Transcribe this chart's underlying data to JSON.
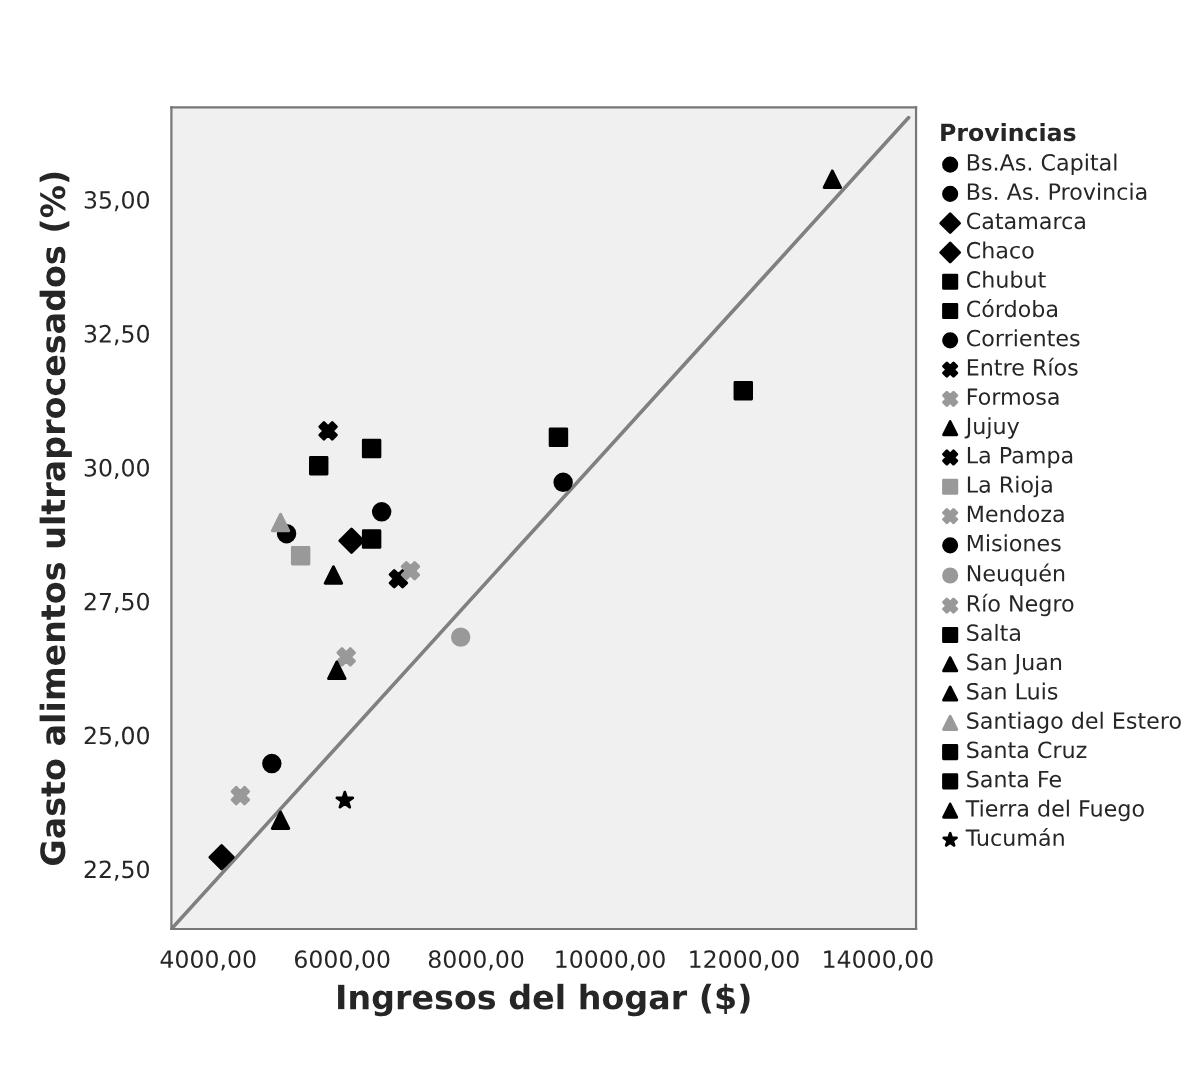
{
  "chart_data": {
    "type": "scatter",
    "xlabel": "Ingresos del hogar ($)",
    "ylabel": "Gasto alimentos ultraprocesados (%)",
    "legend_title": "Provincias",
    "legend": "right",
    "grid": false,
    "xlim": [
      3450,
      14570
    ],
    "ylim": [
      21.38,
      36.72
    ],
    "xticks": [
      {
        "value": 4000,
        "label": "4000,00"
      },
      {
        "value": 6000,
        "label": "6000,00"
      },
      {
        "value": 8000,
        "label": "8000,00"
      },
      {
        "value": 10000,
        "label": "10000,00"
      },
      {
        "value": 12000,
        "label": "12000,00"
      },
      {
        "value": 14000,
        "label": "14000,00"
      }
    ],
    "yticks": [
      {
        "value": 22.5,
        "label": "22,50"
      },
      {
        "value": 25,
        "label": "25,00"
      },
      {
        "value": 27.5,
        "label": "27,50"
      },
      {
        "value": 30,
        "label": "30,00"
      },
      {
        "value": 32.5,
        "label": "32,50"
      },
      {
        "value": 35,
        "label": "35,00"
      }
    ],
    "series": [
      {
        "name": "Bs.As. Capital",
        "color": "#000000",
        "marker": "circle",
        "x": [
          9300
        ],
        "values": [
          29.72
        ]
      },
      {
        "name": "Bs. As. Provincia",
        "color": "#000000",
        "marker": "circle",
        "x": [
          6590
        ],
        "values": [
          29.17
        ]
      },
      {
        "name": "Catamarca",
        "color": "#000000",
        "marker": "diamond",
        "x": [
          6140
        ],
        "values": [
          28.63
        ]
      },
      {
        "name": "Chaco",
        "color": "#000000",
        "marker": "diamond",
        "x": [
          4200
        ],
        "values": [
          22.72
        ]
      },
      {
        "name": "Chubut",
        "color": "#000000",
        "marker": "square",
        "x": [
          9230
        ],
        "values": [
          30.56
        ]
      },
      {
        "name": "Córdoba",
        "color": "#000000",
        "marker": "square",
        "x": [
          6440
        ],
        "values": [
          28.66
        ]
      },
      {
        "name": "Corrientes",
        "color": "#000000",
        "marker": "circle",
        "x": [
          5170
        ],
        "values": [
          28.76
        ]
      },
      {
        "name": "Entre Ríos",
        "color": "#000000",
        "marker": "cross",
        "x": [
          5790
        ],
        "values": [
          30.68
        ]
      },
      {
        "name": "Formosa",
        "color": "#999999",
        "marker": "cross",
        "x": [
          4480
        ],
        "values": [
          23.87
        ]
      },
      {
        "name": "Jujuy",
        "color": "#000000",
        "marker": "triangle",
        "x": [
          5870
        ],
        "values": [
          27.99
        ]
      },
      {
        "name": "La Pampa",
        "color": "#000000",
        "marker": "cross",
        "x": [
          6840
        ],
        "values": [
          27.92
        ]
      },
      {
        "name": "La Rioja",
        "color": "#999999",
        "marker": "square",
        "x": [
          5380
        ],
        "values": [
          28.35
        ]
      },
      {
        "name": "Mendoza",
        "color": "#999999",
        "marker": "cross",
        "x": [
          6060
        ],
        "values": [
          26.46
        ]
      },
      {
        "name": "Misiones",
        "color": "#000000",
        "marker": "circle",
        "x": [
          4950
        ],
        "values": [
          24.47
        ]
      },
      {
        "name": "Neuquén",
        "color": "#999999",
        "marker": "circle",
        "x": [
          7770
        ],
        "values": [
          26.83
        ]
      },
      {
        "name": "Río Negro",
        "color": "#999999",
        "marker": "cross",
        "x": [
          7020
        ],
        "values": [
          28.07
        ]
      },
      {
        "name": "Salta",
        "color": "#000000",
        "marker": "square",
        "x": [
          5650
        ],
        "values": [
          30.03
        ]
      },
      {
        "name": "San Juan",
        "color": "#000000",
        "marker": "triangle",
        "x": [
          5080
        ],
        "values": [
          23.41
        ]
      },
      {
        "name": "San Luis",
        "color": "#000000",
        "marker": "triangle",
        "x": [
          5920
        ],
        "values": [
          26.21
        ]
      },
      {
        "name": "Santiago del Estero",
        "color": "#999999",
        "marker": "triangle",
        "x": [
          5080
        ],
        "values": [
          28.97
        ]
      },
      {
        "name": "Santa Cruz",
        "color": "#000000",
        "marker": "square",
        "x": [
          11990
        ],
        "values": [
          31.43
        ]
      },
      {
        "name": "Santa Fe",
        "color": "#000000",
        "marker": "square",
        "x": [
          6440
        ],
        "values": [
          30.35
        ]
      },
      {
        "name": "Tierra del Fuego",
        "color": "#000000",
        "marker": "triangle",
        "x": [
          13320
        ],
        "values": [
          35.38
        ]
      },
      {
        "name": "Tucumán",
        "color": "#000000",
        "marker": "star",
        "x": [
          6040
        ],
        "values": [
          23.78
        ]
      },
      {
        "type": "line",
        "color": "#808080",
        "marker": "none",
        "line_style": "solid",
        "x": [
          3450,
          14460
        ],
        "values": [
          21.38,
          36.53
        ]
      }
    ]
  }
}
